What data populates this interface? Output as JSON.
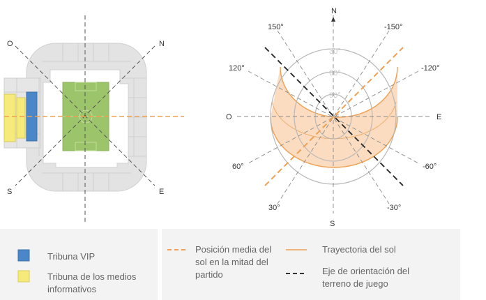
{
  "stadium": {
    "compass": {
      "north": "N",
      "west": "O",
      "south": "S",
      "east": "E"
    }
  },
  "sun_diagram": {
    "cardinals": {
      "north": "N",
      "west": "O",
      "south": "S",
      "east": "E"
    },
    "angles": {
      "a150_left": "150°",
      "a150_right": "-150°",
      "a120_left": "120°",
      "a120_right": "-120°",
      "a60_left": "60°",
      "a60_right": "-60°",
      "a30_left": "30°",
      "a30_right": "-30°"
    },
    "elevations": {
      "e30": "30°",
      "e60": "60°",
      "e90": "90°"
    }
  },
  "legend": {
    "vip": "Tribuna VIP",
    "media_line1": "Tribuna de los medios",
    "media_line2": "informativos",
    "sun_mean_line1": "Posición media del",
    "sun_mean_line2": "sol en la mitad del",
    "sun_mean_line3": "partido",
    "sun_path": "Trayectoria del sol",
    "axis_line1": "Eje de orientación del",
    "axis_line2": "terreno de juego"
  },
  "colors": {
    "vip": "#4a86c8",
    "media": "#f5ea7a",
    "pitch": "#9cc46a",
    "stand": "#e3e3e3",
    "sun": "#f0a050",
    "sun_fill": "#fbdcc0"
  }
}
